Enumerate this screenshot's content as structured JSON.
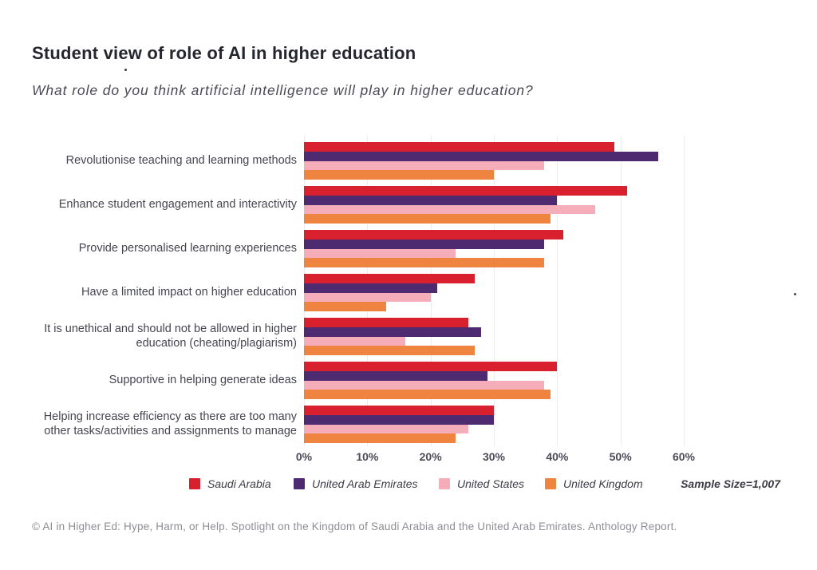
{
  "header": {
    "title": "Student view of role of AI in higher education",
    "subtitle": "What role do you think artificial intelligence will play in higher education?"
  },
  "chart_data": {
    "type": "bar",
    "orientation": "horizontal",
    "title": "Student view of role of AI in higher education",
    "question": "What role do you think artificial intelligence will play in higher education?",
    "categories": [
      "Revolutionise teaching and learning methods",
      "Enhance student engagement and interactivity",
      "Provide personalised learning experiences",
      "Have a limited impact on higher education",
      "It is unethical and should not be allowed in higher education (cheating/plagiarism)",
      "Supportive in helping generate ideas",
      "Helping increase efficiency as there are too many other tasks/activities and assignments to manage"
    ],
    "series": [
      {
        "name": "Saudi Arabia",
        "color": "#d8202f",
        "values": [
          49,
          51,
          41,
          27,
          26,
          40,
          30
        ]
      },
      {
        "name": "United Arab Emirates",
        "color": "#4e2a70",
        "values": [
          56,
          40,
          38,
          21,
          28,
          29,
          30
        ]
      },
      {
        "name": "United States",
        "color": "#f5aeb9",
        "values": [
          38,
          46,
          24,
          20,
          16,
          38,
          26
        ]
      },
      {
        "name": "United Kingdom",
        "color": "#ef8440",
        "values": [
          30,
          39,
          38,
          13,
          27,
          39,
          24
        ]
      }
    ],
    "x_ticks": [
      "0%",
      "10%",
      "20%",
      "30%",
      "40%",
      "50%",
      "60%"
    ],
    "xlim": [
      0,
      60
    ],
    "unit": "%",
    "grid": "vertical",
    "legend_position": "bottom",
    "sample_size_label": "Sample Size=1,007"
  },
  "footer": {
    "text": "© AI in Higher Ed: Hype, Harm, or Help. Spotlight on the Kingdom of Saudi Arabia and the United Arab Emirates. Anthology Report."
  }
}
